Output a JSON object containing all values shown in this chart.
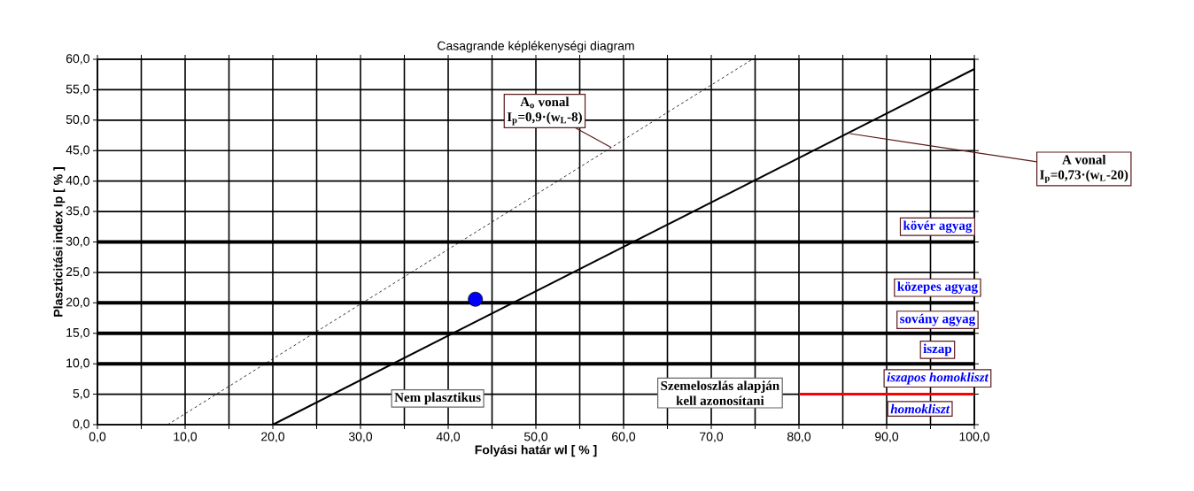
{
  "chart_data": {
    "type": "line",
    "title": "Casagrande képlékenységi diagram",
    "xlabel": "Folyási határ wl [ % ]",
    "ylabel": "Plaszticitási index Ip  [ % ]",
    "xlim": [
      0,
      100
    ],
    "ylim": [
      0,
      60
    ],
    "xticks": [
      {
        "value": 0,
        "label": "0,0"
      },
      {
        "value": 5,
        "label": null
      },
      {
        "value": 10,
        "label": "10,0"
      },
      {
        "value": 15,
        "label": null
      },
      {
        "value": 20,
        "label": "20,0"
      },
      {
        "value": 25,
        "label": null
      },
      {
        "value": 30,
        "label": "30,0"
      },
      {
        "value": 35,
        "label": null
      },
      {
        "value": 40,
        "label": "40,0"
      },
      {
        "value": 45,
        "label": null
      },
      {
        "value": 50,
        "label": "50,0"
      },
      {
        "value": 55,
        "label": null
      },
      {
        "value": 60,
        "label": "60,0"
      },
      {
        "value": 65,
        "label": null
      },
      {
        "value": 70,
        "label": "70,0"
      },
      {
        "value": 75,
        "label": null
      },
      {
        "value": 80,
        "label": "80,0"
      },
      {
        "value": 85,
        "label": null
      },
      {
        "value": 90,
        "label": "90,0"
      },
      {
        "value": 95,
        "label": null
      },
      {
        "value": 100,
        "label": "100,0"
      }
    ],
    "yticks": [
      {
        "value": 0,
        "label": "0,0"
      },
      {
        "value": 5,
        "label": "5,0"
      },
      {
        "value": 10,
        "label": "10,0"
      },
      {
        "value": 15,
        "label": "15,0"
      },
      {
        "value": 20,
        "label": "20,0"
      },
      {
        "value": 25,
        "label": "25,0"
      },
      {
        "value": 30,
        "label": "30,0"
      },
      {
        "value": 35,
        "label": "35,0"
      },
      {
        "value": 40,
        "label": "40,0"
      },
      {
        "value": 45,
        "label": "45,0"
      },
      {
        "value": 50,
        "label": "50,0"
      },
      {
        "value": 55,
        "label": "55,0"
      },
      {
        "value": 60,
        "label": "60,0"
      }
    ],
    "grid": true,
    "series": [
      {
        "x": [
          20,
          100
        ],
        "values": [
          0,
          58.4
        ],
        "color": "#000000",
        "line_style": "solid",
        "marker": "none"
      },
      {
        "x": [
          8,
          74.7
        ],
        "values": [
          0,
          60
        ],
        "color": "#000000",
        "line_style": "dashed",
        "marker": "none"
      },
      {
        "x": [
          80,
          100
        ],
        "values": [
          5,
          5
        ],
        "color": "#ff0000",
        "line_style": "solid",
        "marker": "none"
      },
      {
        "type": "scatter",
        "x": [
          43.1
        ],
        "values": [
          20.6
        ],
        "color": "#0000ff",
        "marker": "circle"
      }
    ],
    "ref_lines": [
      {
        "axis": "y",
        "value": 10
      },
      {
        "axis": "y",
        "value": 15
      },
      {
        "axis": "y",
        "value": 20
      },
      {
        "axis": "y",
        "value": 30
      }
    ],
    "annotations": [
      {
        "text": "A$_{o}$ vonal",
        "x": 58.6,
        "y": 45.5
      },
      "I$_{p}$=0,9·(w$_{L}$-8)",
      {
        "text": "A vonal",
        "x": 85.8,
        "y": 47.8
      },
      "I$_{p}$=0,73·(w$_{L}$-20)",
      "kövér agyag",
      "közepes agyag",
      "sovány agyag",
      "iszap",
      "iszapos homokliszt",
      "homokliszt",
      "Nem plasztikus",
      "Szemeloszlás alapján",
      "kell azonosítani"
    ]
  }
}
